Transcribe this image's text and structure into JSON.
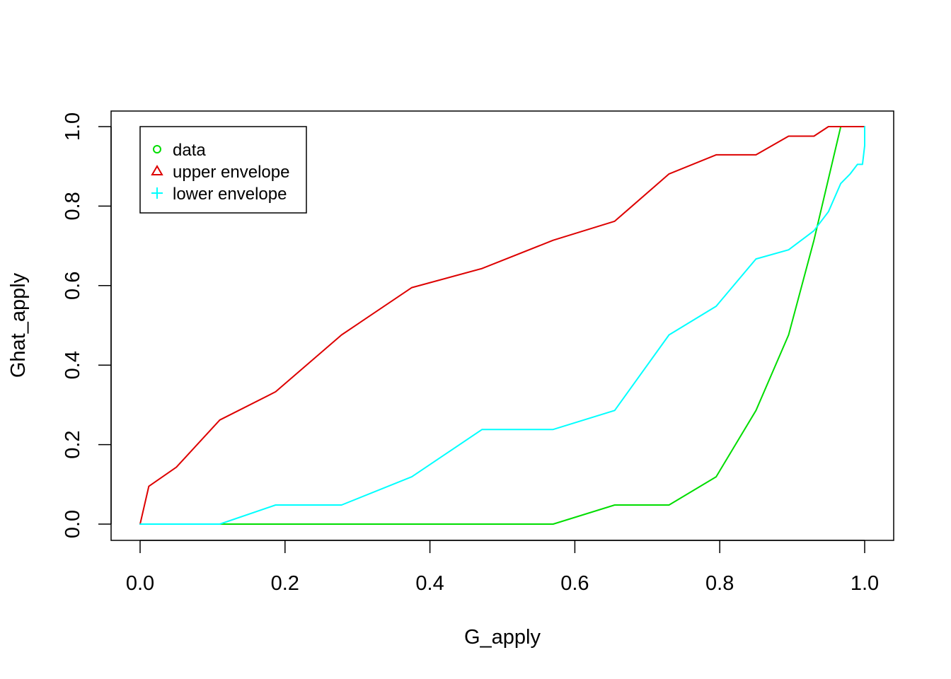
{
  "chart_data": {
    "type": "line",
    "title": "",
    "xlabel": "G_apply",
    "ylabel": "Ghat_apply",
    "xlim": [
      0.0,
      1.0
    ],
    "ylim": [
      0.0,
      1.0
    ],
    "xticks": [
      "0.0",
      "0.2",
      "0.4",
      "0.6",
      "0.8",
      "1.0"
    ],
    "yticks": [
      "0.0",
      "0.2",
      "0.4",
      "0.6",
      "0.8",
      "1.0"
    ],
    "grid": false,
    "legend_position": "top-left",
    "series": [
      {
        "name": "data",
        "color": "#00dd00",
        "symbol": "circle",
        "x": [
          0.0,
          0.57,
          0.655,
          0.73,
          0.795,
          0.85,
          0.895,
          0.93,
          0.967
        ],
        "y": [
          0.0,
          0.0,
          0.048,
          0.048,
          0.119,
          0.286,
          0.476,
          0.714,
          1.0
        ]
      },
      {
        "name": "upper envelope",
        "color": "#dd0000",
        "symbol": "triangle",
        "x": [
          0.0,
          0.012,
          0.05,
          0.11,
          0.187,
          0.278,
          0.375,
          0.472,
          0.57,
          0.655,
          0.73,
          0.795,
          0.85,
          0.895,
          0.93,
          0.95,
          0.967,
          1.0
        ],
        "y": [
          0.0,
          0.095,
          0.143,
          0.262,
          0.333,
          0.476,
          0.595,
          0.643,
          0.714,
          0.762,
          0.881,
          0.929,
          0.929,
          0.976,
          0.976,
          1.0,
          1.0,
          1.0
        ]
      },
      {
        "name": "lower envelope",
        "color": "#00ffff",
        "symbol": "plus",
        "x": [
          0.0,
          0.11,
          0.187,
          0.278,
          0.375,
          0.472,
          0.57,
          0.655,
          0.73,
          0.795,
          0.85,
          0.895,
          0.93,
          0.95,
          0.967,
          0.98,
          0.99,
          0.997,
          1.0,
          1.0
        ],
        "y": [
          0.0,
          0.0,
          0.048,
          0.048,
          0.119,
          0.238,
          0.238,
          0.286,
          0.476,
          0.548,
          0.667,
          0.69,
          0.738,
          0.786,
          0.857,
          0.881,
          0.905,
          0.905,
          0.952,
          1.0
        ]
      }
    ]
  }
}
